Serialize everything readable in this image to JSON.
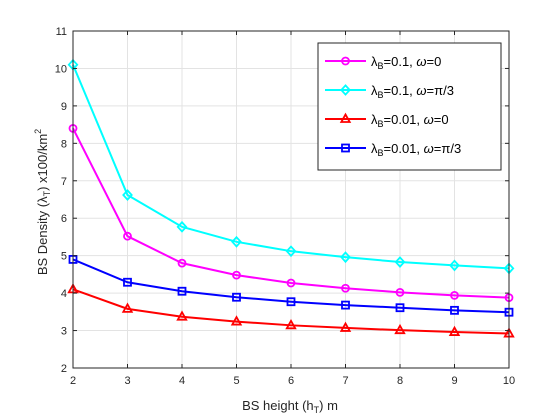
{
  "chart_data": {
    "type": "line",
    "xlabel": {
      "main": "BS height (h",
      "sub": "T",
      "tail": ") m"
    },
    "ylabel": {
      "main": "BS Density (λ",
      "sub": "T",
      "tail": ") x100/km",
      "sup": "2"
    },
    "xlim": [
      2,
      10
    ],
    "ylim": [
      2,
      11
    ],
    "xticks": [
      "2",
      "3",
      "4",
      "5",
      "6",
      "7",
      "8",
      "9",
      "10"
    ],
    "yticks": [
      "2",
      "3",
      "4",
      "5",
      "6",
      "7",
      "8",
      "9",
      "10",
      "11"
    ],
    "grid": true,
    "legend_position": "top-right",
    "x": [
      2,
      3,
      4,
      5,
      6,
      7,
      8,
      9,
      10
    ],
    "series": [
      {
        "name": {
          "lam": "λ",
          "sub": "B",
          "rest": "=0.1, ",
          "omega": "ω",
          "val": "=0"
        },
        "color": "#ff00ff",
        "marker": "circle",
        "values": [
          8.4,
          5.52,
          4.8,
          4.48,
          4.27,
          4.13,
          4.02,
          3.94,
          3.88
        ]
      },
      {
        "name": {
          "lam": "λ",
          "sub": "B",
          "rest": "=0.1, ",
          "omega": "ω",
          "val": "=π/3"
        },
        "color": "#00ffff",
        "marker": "diamond",
        "values": [
          10.1,
          6.62,
          5.77,
          5.37,
          5.12,
          4.96,
          4.83,
          4.74,
          4.66
        ]
      },
      {
        "name": {
          "lam": "λ",
          "sub": "B",
          "rest": "=0.01, ",
          "omega": "ω",
          "val": "=0"
        },
        "color": "#ff0000",
        "marker": "triangle",
        "values": [
          4.1,
          3.58,
          3.37,
          3.24,
          3.14,
          3.07,
          3.01,
          2.96,
          2.92
        ]
      },
      {
        "name": {
          "lam": "λ",
          "sub": "B",
          "rest": "=0.01, ",
          "omega": "ω",
          "val": "=π/3"
        },
        "color": "#0000ff",
        "marker": "square",
        "values": [
          4.9,
          4.29,
          4.05,
          3.89,
          3.77,
          3.68,
          3.61,
          3.54,
          3.49
        ]
      }
    ]
  }
}
